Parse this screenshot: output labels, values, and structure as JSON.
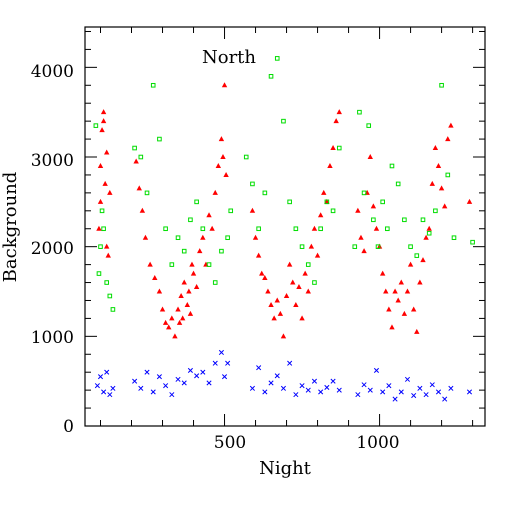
{
  "chart_data": {
    "type": "scatter",
    "annotation": "North",
    "xlabel": "Night",
    "ylabel": "Background",
    "xlim": [
      50,
      1340
    ],
    "ylim": [
      0,
      4450
    ],
    "x_ticks": [
      500,
      1000
    ],
    "x_tick_labels": [
      "500",
      "1000"
    ],
    "y_ticks": [
      0,
      1000,
      2000,
      3000,
      4000
    ],
    "y_tick_labels": [
      "0",
      "1000",
      "2000",
      "3000",
      "4000"
    ],
    "colors": {
      "red": "#ff0000",
      "green": "#00dd00",
      "blue": "#0000ff"
    },
    "series": [
      {
        "marker": "triangle",
        "color": "#ff0000",
        "x": [
          95,
          100,
          105,
          110,
          115,
          120,
          125,
          100,
          110,
          120,
          130,
          215,
          225,
          235,
          245,
          260,
          275,
          290,
          300,
          310,
          320,
          330,
          340,
          350,
          355,
          360,
          365,
          370,
          380,
          385,
          390,
          395,
          400,
          410,
          420,
          430,
          440,
          450,
          460,
          470,
          480,
          490,
          495,
          500,
          505,
          590,
          600,
          610,
          620,
          630,
          640,
          650,
          660,
          670,
          680,
          690,
          700,
          710,
          720,
          730,
          740,
          750,
          760,
          770,
          780,
          790,
          800,
          810,
          820,
          830,
          840,
          850,
          860,
          870,
          930,
          940,
          950,
          960,
          970,
          980,
          990,
          1000,
          1010,
          1020,
          1030,
          1040,
          1050,
          1060,
          1070,
          1080,
          1090,
          1100,
          1110,
          1120,
          1130,
          1140,
          1150,
          1160,
          1170,
          1180,
          1190,
          1200,
          1210,
          1220,
          1230,
          1290
        ],
        "y": [
          2200,
          2900,
          3300,
          3500,
          2700,
          2000,
          1900,
          2500,
          3400,
          3050,
          2600,
          2950,
          2650,
          2400,
          2100,
          1800,
          1650,
          1500,
          1300,
          1150,
          1100,
          1200,
          1000,
          1300,
          1150,
          1450,
          1200,
          1600,
          1350,
          1500,
          1250,
          1800,
          1700,
          1550,
          1950,
          2100,
          1800,
          2350,
          2200,
          2600,
          2900,
          3200,
          3000,
          3800,
          2800,
          2400,
          2100,
          1900,
          1700,
          1650,
          1500,
          1350,
          1200,
          1400,
          1250,
          1000,
          1450,
          1800,
          1600,
          1350,
          1550,
          1200,
          1700,
          1500,
          2000,
          2200,
          1900,
          2350,
          2600,
          2500,
          2900,
          3100,
          3400,
          3500,
          2400,
          2100,
          1950,
          2600,
          3000,
          2450,
          2200,
          2000,
          1700,
          1500,
          1300,
          1100,
          1500,
          1400,
          1600,
          1250,
          1500,
          1800,
          1300,
          1050,
          1600,
          1850,
          2100,
          2200,
          2700,
          3100,
          2900,
          2650,
          2450,
          3200,
          3350,
          2500
        ]
      },
      {
        "marker": "square",
        "color": "#00dd00",
        "x": [
          85,
          95,
          100,
          105,
          110,
          120,
          130,
          140,
          210,
          230,
          250,
          270,
          290,
          310,
          330,
          350,
          370,
          390,
          410,
          430,
          450,
          470,
          490,
          510,
          520,
          570,
          590,
          610,
          630,
          650,
          670,
          690,
          710,
          730,
          750,
          770,
          790,
          810,
          830,
          850,
          870,
          920,
          935,
          950,
          965,
          980,
          995,
          1010,
          1025,
          1040,
          1060,
          1080,
          1100,
          1120,
          1140,
          1160,
          1180,
          1200,
          1220,
          1240,
          1300
        ],
        "y": [
          3350,
          1700,
          2000,
          2400,
          2200,
          1600,
          1450,
          1300,
          3100,
          3000,
          2600,
          3800,
          3200,
          2200,
          1800,
          2100,
          1950,
          2300,
          2500,
          2200,
          1800,
          1600,
          1950,
          2100,
          2400,
          3000,
          2700,
          2200,
          2600,
          3900,
          4100,
          3400,
          2500,
          2200,
          2000,
          1800,
          1600,
          2200,
          2500,
          2400,
          3100,
          2000,
          3500,
          2600,
          3350,
          2300,
          2000,
          2500,
          2200,
          2900,
          2700,
          2300,
          2000,
          1900,
          2300,
          2150,
          2400,
          3800,
          2800,
          2100,
          2050
        ]
      },
      {
        "marker": "cross",
        "color": "#0000ff",
        "x": [
          90,
          100,
          110,
          120,
          130,
          140,
          210,
          230,
          250,
          270,
          290,
          310,
          330,
          350,
          370,
          390,
          410,
          430,
          450,
          470,
          490,
          500,
          510,
          590,
          610,
          630,
          650,
          670,
          690,
          710,
          730,
          750,
          770,
          790,
          810,
          830,
          850,
          870,
          930,
          950,
          970,
          990,
          1010,
          1030,
          1050,
          1070,
          1090,
          1110,
          1130,
          1150,
          1170,
          1190,
          1210,
          1230,
          1290
        ],
        "y": [
          450,
          550,
          380,
          600,
          350,
          420,
          500,
          420,
          600,
          380,
          550,
          450,
          350,
          520,
          480,
          620,
          560,
          600,
          480,
          700,
          820,
          550,
          700,
          420,
          650,
          380,
          480,
          560,
          420,
          700,
          350,
          450,
          400,
          500,
          380,
          430,
          500,
          400,
          350,
          460,
          400,
          620,
          380,
          450,
          300,
          380,
          520,
          340,
          420,
          350,
          460,
          380,
          300,
          420,
          380
        ]
      }
    ]
  }
}
